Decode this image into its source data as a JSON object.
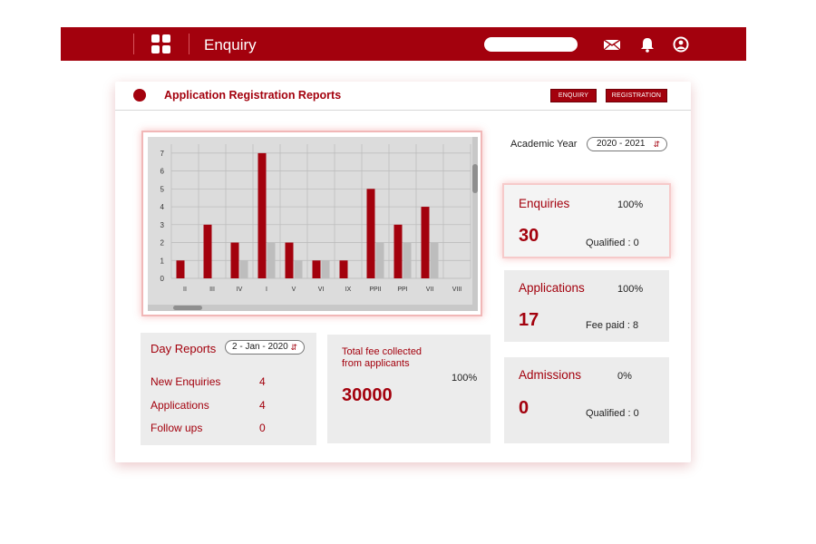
{
  "topbar": {
    "title": "Enquiry",
    "search_placeholder": ""
  },
  "panel": {
    "title": "Application Registration Reports",
    "buttons": [
      "ENQUIRY",
      "REGISTRATION"
    ]
  },
  "academic_year": {
    "label": "Academic Year",
    "value": "2020 - 2021"
  },
  "chart_data": {
    "type": "bar",
    "categories": [
      "II",
      "III",
      "IV",
      "I",
      "V",
      "VI",
      "IX",
      "PPII",
      "PPI",
      "VII",
      "VIII"
    ],
    "y_ticks": [
      "0",
      "1",
      "2",
      "3",
      "4",
      "5",
      "6",
      "7"
    ],
    "ylim": [
      0,
      7.5
    ],
    "series": [
      {
        "values": [
          1,
          3,
          2,
          7,
          2,
          1,
          1,
          5,
          3,
          4,
          0
        ],
        "color": "#a3010d"
      },
      {
        "values": [
          0,
          0,
          1,
          2,
          1,
          1,
          0,
          2,
          2,
          2,
          0
        ],
        "color": "#bdbdbd"
      }
    ],
    "grid": true
  },
  "day_reports": {
    "title": "Day Reports",
    "date": "2 - Jan - 2020",
    "rows": [
      {
        "label": "New Enquiries",
        "value": "4"
      },
      {
        "label": "Applications",
        "value": "4"
      },
      {
        "label": "Follow ups",
        "value": "0"
      }
    ]
  },
  "fee": {
    "title_line1": "Total fee collected",
    "title_line2": "from applicants",
    "percent": "100%",
    "amount": "30000"
  },
  "stats": {
    "enquiries": {
      "title": "Enquiries",
      "percent": "100%",
      "value": "30",
      "sub": "Qualified : 0"
    },
    "applications": {
      "title": "Applications",
      "percent": "100%",
      "value": "17",
      "sub": "Fee paid : 8"
    },
    "admissions": {
      "title": "Admissions",
      "percent": "0%",
      "value": "0",
      "sub": "Qualified : 0"
    }
  },
  "colors": {
    "brand": "#a3010d",
    "card_bg": "#ececec",
    "accent_glow": "#f1b7b7"
  },
  "icons": [
    "grid-icon",
    "mail-icon",
    "bell-icon",
    "user-icon",
    "record-dot-icon",
    "sort-arrows-icon"
  ]
}
